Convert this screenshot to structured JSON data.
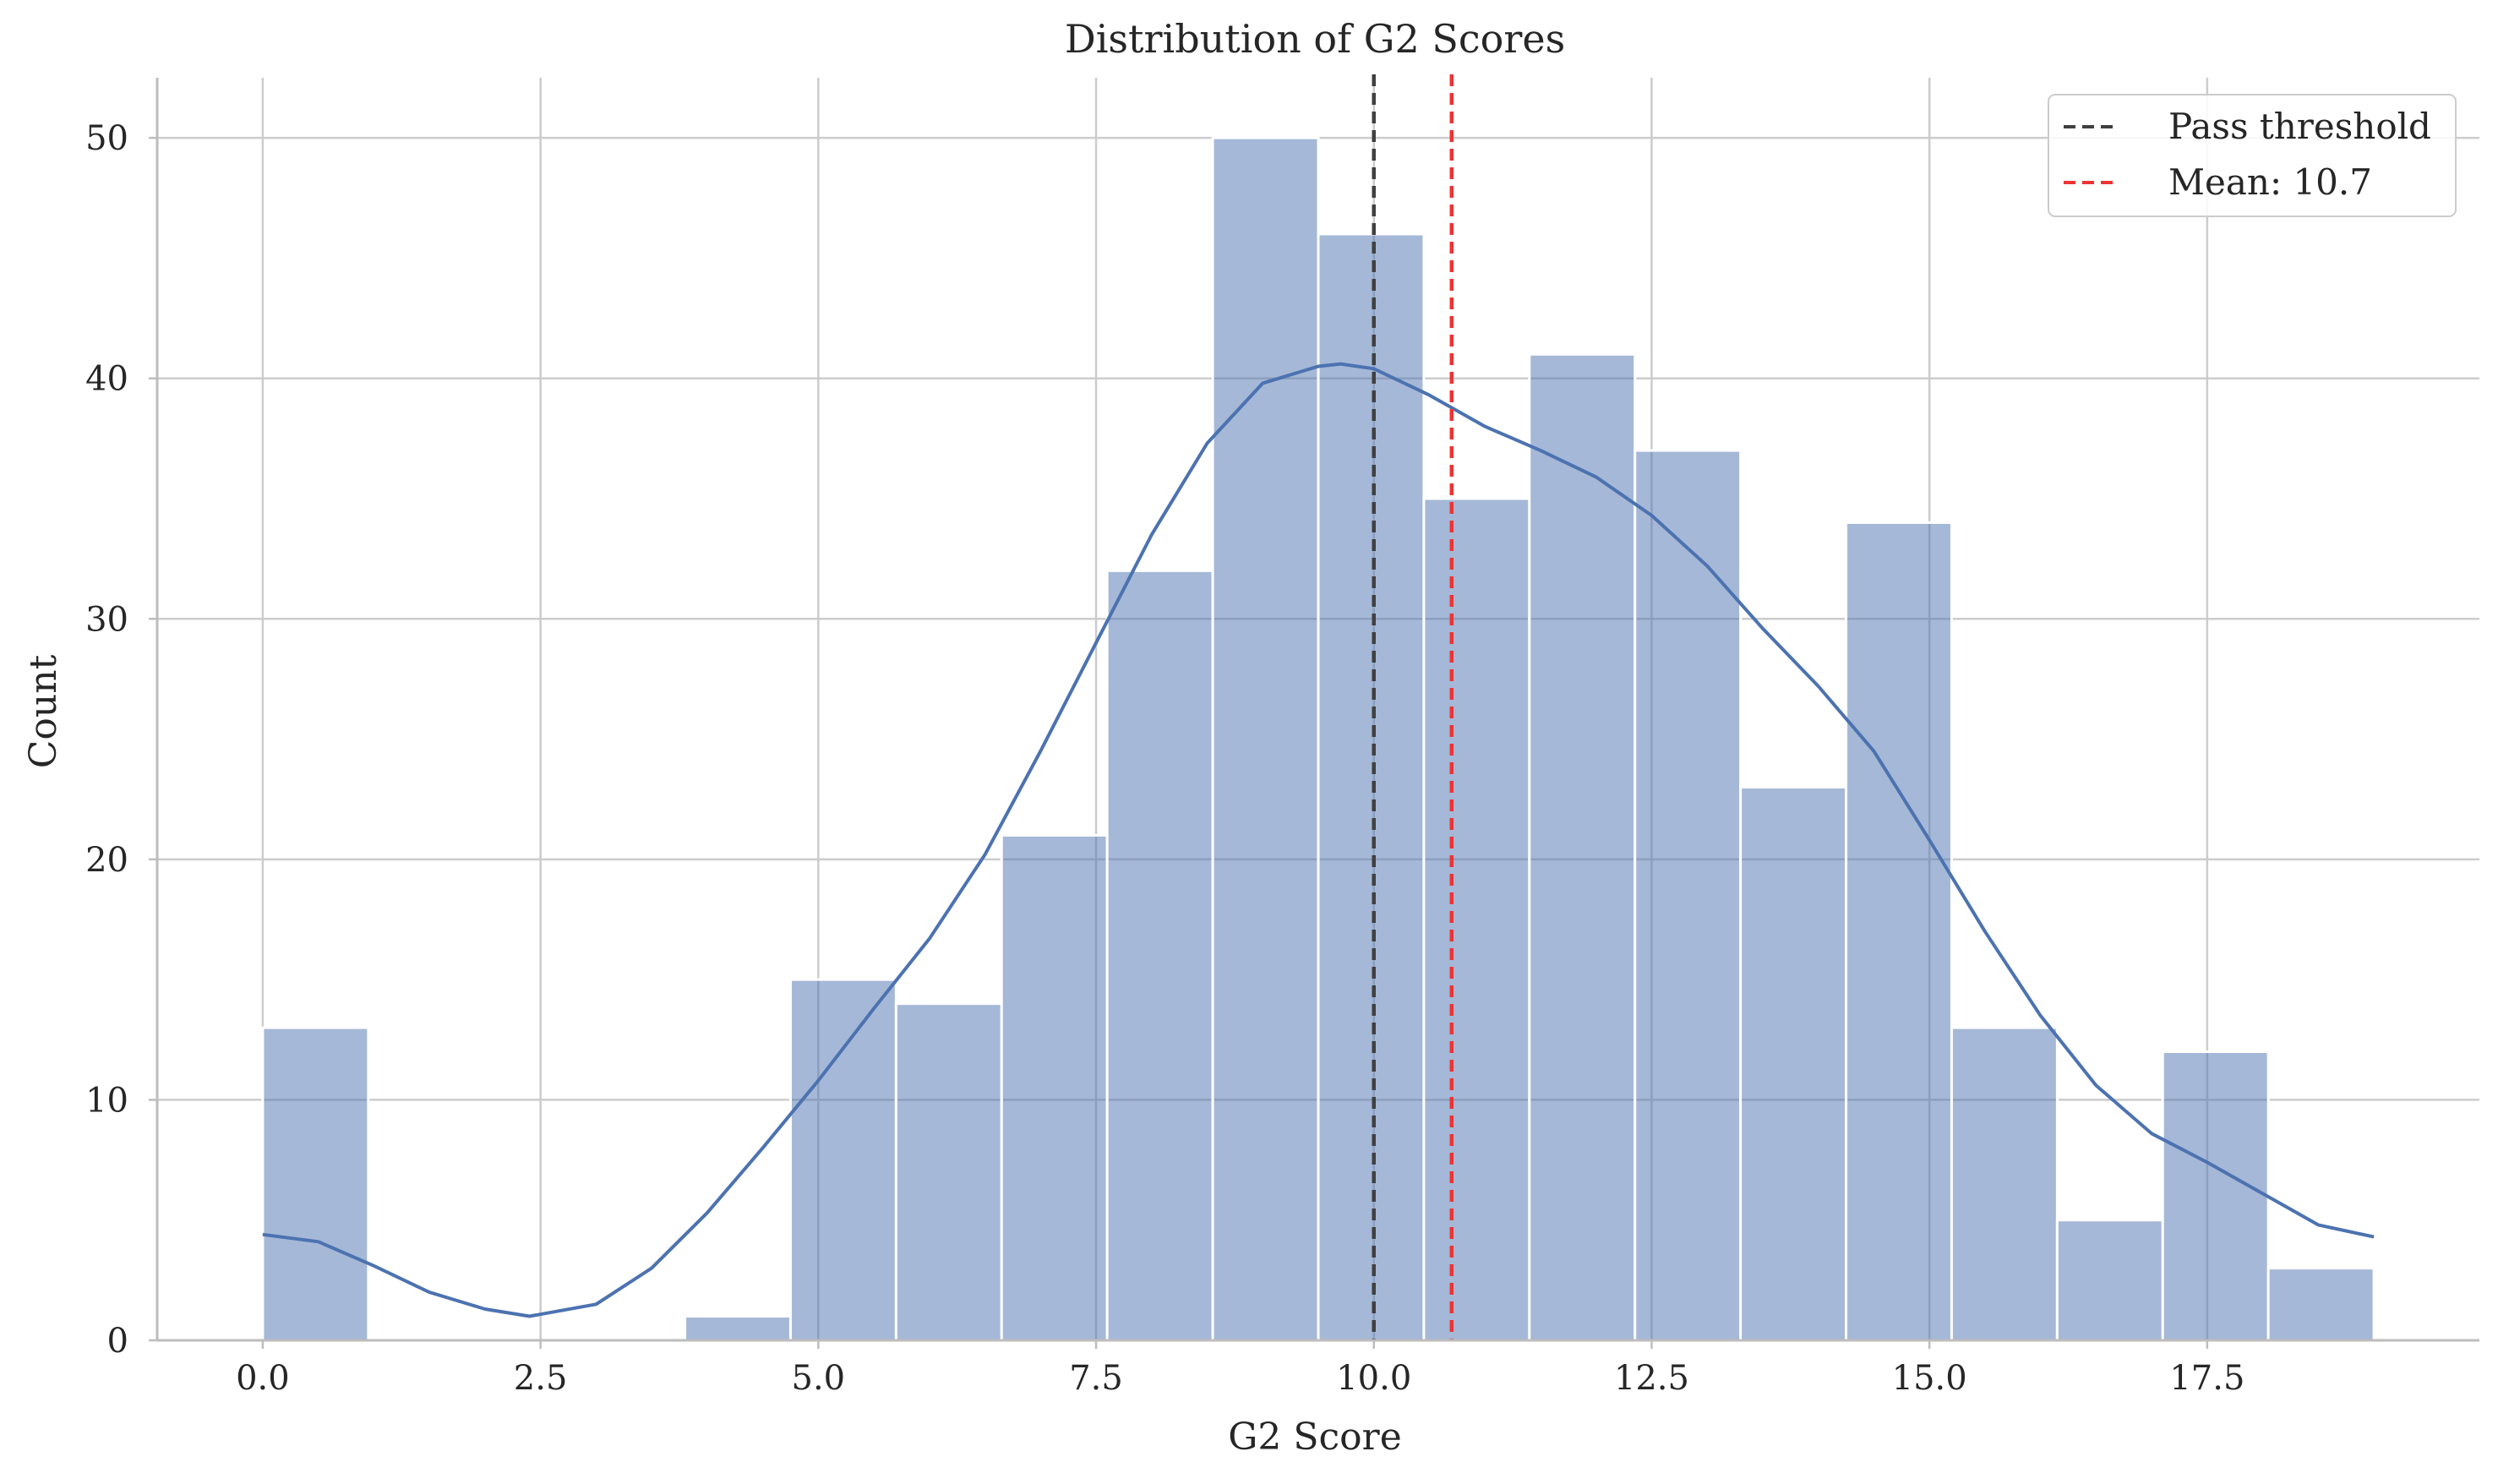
{
  "chart_data": {
    "type": "bar",
    "title": "Distribution of G2 Scores",
    "xlabel": "G2 Score",
    "ylabel": "Count",
    "xlim": [
      -0.95,
      19.95
    ],
    "ylim": [
      0,
      52.5
    ],
    "xticks": [
      "0.0",
      "2.5",
      "5.0",
      "7.5",
      "10.0",
      "12.5",
      "15.0",
      "17.5"
    ],
    "yticks": [
      "0",
      "10",
      "20",
      "30",
      "40",
      "50"
    ],
    "grid": true,
    "legend_position": "top-right",
    "bins": [
      {
        "x0": 0.0,
        "x1": 0.95,
        "count": 13
      },
      {
        "x0": 0.95,
        "x1": 1.9,
        "count": 0
      },
      {
        "x0": 1.9,
        "x1": 2.85,
        "count": 0
      },
      {
        "x0": 2.85,
        "x1": 3.8,
        "count": 0
      },
      {
        "x0": 3.8,
        "x1": 4.75,
        "count": 1
      },
      {
        "x0": 4.75,
        "x1": 5.7,
        "count": 15
      },
      {
        "x0": 5.7,
        "x1": 6.65,
        "count": 14
      },
      {
        "x0": 6.65,
        "x1": 7.6,
        "count": 21
      },
      {
        "x0": 7.6,
        "x1": 8.55,
        "count": 32
      },
      {
        "x0": 8.55,
        "x1": 9.5,
        "count": 50
      },
      {
        "x0": 9.5,
        "x1": 10.45,
        "count": 46
      },
      {
        "x0": 10.45,
        "x1": 11.4,
        "count": 35
      },
      {
        "x0": 11.4,
        "x1": 12.35,
        "count": 41
      },
      {
        "x0": 12.35,
        "x1": 13.3,
        "count": 37
      },
      {
        "x0": 13.3,
        "x1": 14.25,
        "count": 23
      },
      {
        "x0": 14.25,
        "x1": 15.2,
        "count": 34
      },
      {
        "x0": 15.2,
        "x1": 16.15,
        "count": 13
      },
      {
        "x0": 16.15,
        "x1": 17.1,
        "count": 5
      },
      {
        "x0": 17.1,
        "x1": 18.05,
        "count": 12
      },
      {
        "x0": 18.05,
        "x1": 19.0,
        "count": 3
      }
    ],
    "kde": {
      "x": [
        0,
        0.5,
        1,
        1.5,
        2,
        2.4,
        3,
        3.5,
        4,
        4.5,
        5,
        5.5,
        6,
        6.5,
        7,
        7.5,
        8,
        8.5,
        9,
        9.5,
        9.7,
        10,
        10.5,
        11,
        11.5,
        12,
        12.5,
        13,
        13.5,
        14,
        14.5,
        15,
        15.5,
        16,
        16.5,
        17,
        17.5,
        18,
        18.5,
        19
      ],
      "y": [
        4.4,
        4.1,
        3.1,
        2.0,
        1.3,
        1.0,
        1.5,
        3.0,
        5.3,
        8.0,
        10.8,
        13.8,
        16.7,
        20.2,
        24.5,
        29.0,
        33.5,
        37.3,
        39.8,
        40.5,
        40.6,
        40.4,
        39.3,
        38.0,
        37.0,
        35.9,
        34.3,
        32.2,
        29.6,
        27.2,
        24.5,
        20.8,
        17.0,
        13.5,
        10.6,
        8.6,
        7.4,
        6.1,
        4.8,
        4.3
      ]
    },
    "color": "#4c72b0",
    "bar_color": "#a4b7d7",
    "series": [
      {
        "name": "Pass threshold",
        "x": 10,
        "color": "#404040",
        "style": "dashed"
      },
      {
        "name": "Mean: 10.7",
        "x": 10.7,
        "color": "#ee3333",
        "style": "dashed"
      }
    ]
  }
}
